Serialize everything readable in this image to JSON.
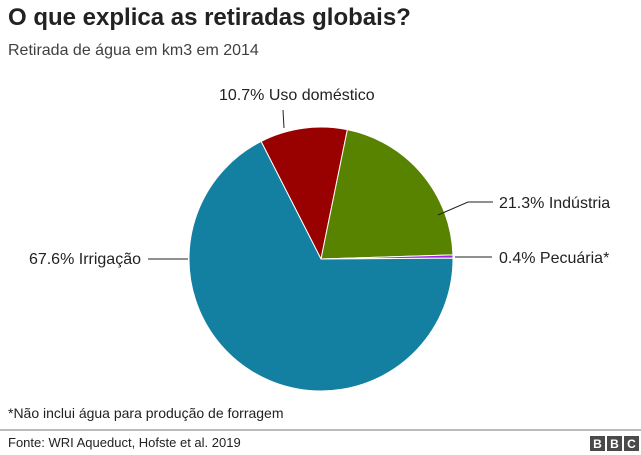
{
  "title": "O que explica as retiradas globais?",
  "subtitle": "Retirada de água em km3 em 2014",
  "note": "*Não inclui água para produção de forragem",
  "source": "Fonte: WRI Aqueduct, Hofste et al. 2019",
  "logo": [
    "B",
    "B",
    "C"
  ],
  "chart_data": {
    "type": "pie",
    "title": "O que explica as retiradas globais?",
    "unit": "%",
    "slices": [
      {
        "name": "Uso doméstico",
        "value": 10.7,
        "label": "10.7% Uso doméstico",
        "color": "#990000"
      },
      {
        "name": "Indústria",
        "value": 21.3,
        "label": "21.3% Indústria",
        "color": "#588300"
      },
      {
        "name": "Pecuária*",
        "value": 0.4,
        "label": "0.4% Pecuária*",
        "color": "#a020f0"
      },
      {
        "name": "Irrigação",
        "value": 67.6,
        "label": "67.6% Irrigação",
        "color": "#1380a1"
      }
    ]
  }
}
